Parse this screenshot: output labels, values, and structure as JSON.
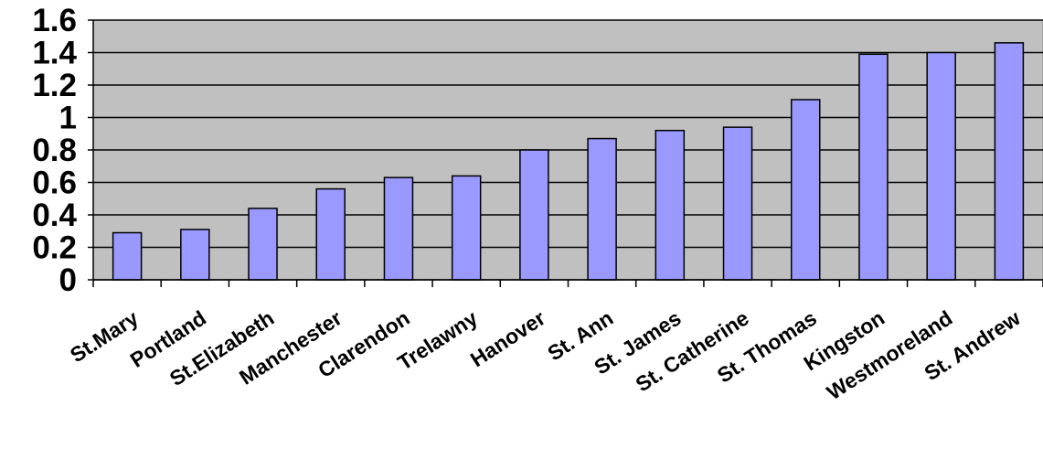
{
  "chart_data": {
    "type": "bar",
    "title": "",
    "xlabel": "",
    "ylabel": "",
    "categories": [
      "St.Mary",
      "Portland",
      "St.Elizabeth",
      "Manchester",
      "Clarendon",
      "Trelawny",
      "Hanover",
      "St. Ann",
      "St. James",
      "St. Catherine",
      "St. Thomas",
      "Kingston",
      "Westmoreland",
      "St. Andrew"
    ],
    "values": [
      0.29,
      0.31,
      0.44,
      0.56,
      0.63,
      0.64,
      0.8,
      0.87,
      0.92,
      0.94,
      1.11,
      1.39,
      1.4,
      1.46
    ],
    "ylim": [
      0,
      1.6
    ],
    "yticks": [
      "0",
      "0.2",
      "0.4",
      "0.6",
      "0.8",
      "1",
      "1.2",
      "1.4",
      "1.6"
    ],
    "grid": true,
    "legend": "none",
    "colors": {
      "plot_background": "#c0c0c0",
      "bar_fill": "#9999ff",
      "bar_stroke": "#000000",
      "gridline": "#000000"
    }
  }
}
